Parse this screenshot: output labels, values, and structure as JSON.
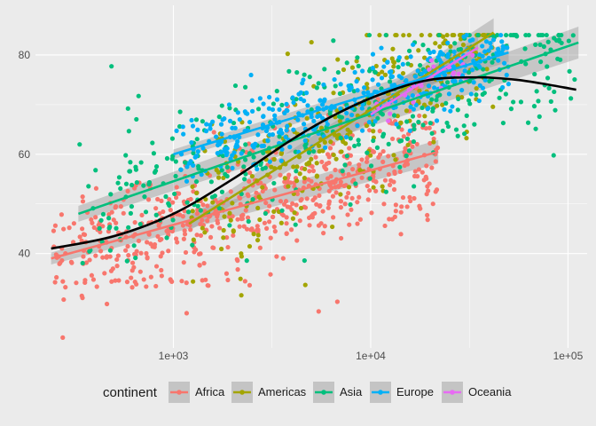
{
  "chart_data": {
    "type": "scatter",
    "x_scale": "log10",
    "xlim": [
      200,
      125000
    ],
    "ylim": [
      21,
      90
    ],
    "x_ticks": [
      {
        "value": 1000,
        "label": "1e+03"
      },
      {
        "value": 10000,
        "label": "1e+04"
      },
      {
        "value": 100000,
        "label": "1e+05"
      }
    ],
    "y_ticks": [
      {
        "value": 40,
        "label": "40"
      },
      {
        "value": 60,
        "label": "60"
      },
      {
        "value": 80,
        "label": "80"
      }
    ],
    "grid": true,
    "legend": {
      "title": "continent",
      "position": "bottom"
    },
    "series": [
      {
        "name": "Africa",
        "color": "#F8766D",
        "n_points": 624,
        "x_range": [
          240,
          22000
        ],
        "y_center_fit": [
          [
            240,
            39
          ],
          [
            22000,
            60
          ]
        ],
        "spread": 6,
        "fit_line": [
          [
            240,
            39
          ],
          [
            22000,
            60.5
          ]
        ],
        "band": 1.5
      },
      {
        "name": "Americas",
        "color": "#A3A500",
        "n_points": 300,
        "x_range": [
          1200,
          42000
        ],
        "y_center_fit": [
          [
            1200,
            46
          ],
          [
            42000,
            84.5
          ]
        ],
        "spread": 7,
        "fit_line": [
          [
            1200,
            46
          ],
          [
            42000,
            84.5
          ]
        ],
        "band": 1.8
      },
      {
        "name": "Asia",
        "color": "#00BF7D",
        "n_points": 396,
        "x_range": [
          330,
          113000
        ],
        "y_center_fit": [
          [
            330,
            48
          ],
          [
            113000,
            82.5
          ]
        ],
        "spread": 8,
        "fit_line": [
          [
            330,
            48
          ],
          [
            113000,
            82.5
          ]
        ],
        "band": 2.0
      },
      {
        "name": "Europe",
        "color": "#00B0F6",
        "n_points": 360,
        "x_range": [
          1000,
          50000
        ],
        "y_center_fit": [
          [
            1000,
            60
          ],
          [
            50000,
            80.5
          ]
        ],
        "spread": 3.5,
        "fit_line": [
          [
            1000,
            60
          ],
          [
            50000,
            80.5
          ]
        ],
        "band": 1.2
      },
      {
        "name": "Oceania",
        "color": "#E76BF3",
        "n_points": 24,
        "x_range": [
          10000,
          35000
        ],
        "y_center_fit": [
          [
            10000,
            68
          ],
          [
            35000,
            81.5
          ]
        ],
        "spread": 1.5,
        "fit_line": [
          [
            10000,
            68
          ],
          [
            35000,
            81.5
          ]
        ],
        "band": 1.5
      }
    ],
    "overall_smooth": {
      "color": "#000000",
      "points": [
        [
          240,
          41
        ],
        [
          500,
          43.5
        ],
        [
          1000,
          48
        ],
        [
          2000,
          55
        ],
        [
          4000,
          63
        ],
        [
          7000,
          68.5
        ],
        [
          12000,
          72.5
        ],
        [
          20000,
          75
        ],
        [
          35000,
          75.5
        ],
        [
          55000,
          75
        ],
        [
          80000,
          74
        ],
        [
          110000,
          73
        ]
      ]
    }
  }
}
